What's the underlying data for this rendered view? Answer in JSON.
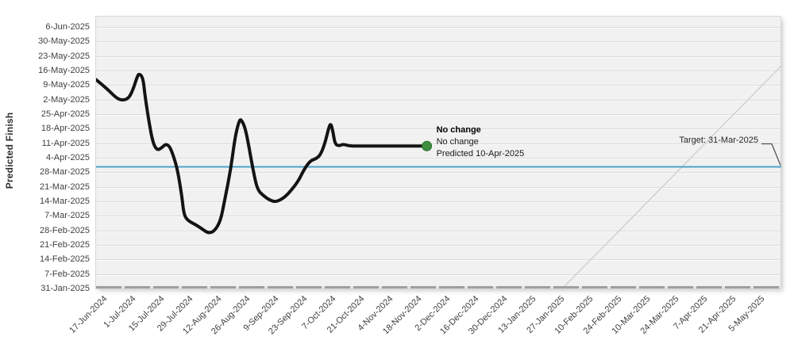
{
  "chart_data": {
    "type": "line",
    "title": "",
    "ylabel": "Predicted Finish",
    "grid": true,
    "x_axis": {
      "tick_interval_days": 14,
      "tick_labels": [
        "17-Jun-2024",
        "1-Jul-2024",
        "15-Jul-2024",
        "29-Jul-2024",
        "12-Aug-2024",
        "26-Aug-2024",
        "9-Sep-2024",
        "23-Sep-2024",
        "7-Oct-2024",
        "21-Oct-2024",
        "4-Nov-2024",
        "18-Nov-2024",
        "2-Dec-2024",
        "16-Dec-2024",
        "30-Dec-2024",
        "13-Jan-2025",
        "27-Jan-2025",
        "10-Feb-2025",
        "24-Feb-2025",
        "10-Mar-2025",
        "24-Mar-2025",
        "7-Apr-2025",
        "21-Apr-2025",
        "5-May-2025"
      ]
    },
    "y_axis": {
      "tick_interval_days": 7,
      "tick_labels": [
        "6-Jun-2025",
        "30-May-2025",
        "23-May-2025",
        "16-May-2025",
        "9-May-2025",
        "2-May-2025",
        "25-Apr-2025",
        "18-Apr-2025",
        "11-Apr-2025",
        "4-Apr-2025",
        "28-Mar-2025",
        "21-Mar-2025",
        "14-Mar-2025",
        "7-Mar-2025",
        "28-Feb-2025",
        "21-Feb-2025",
        "14-Feb-2025",
        "7-Feb-2025",
        "31-Jan-2025"
      ]
    },
    "series": [
      {
        "name": "predicted-finish",
        "color": "#141414",
        "points": [
          [
            "2024-06-17",
            "2025-05-12"
          ],
          [
            "2024-06-22",
            "2025-05-08"
          ],
          [
            "2024-06-27",
            "2025-05-03"
          ],
          [
            "2024-06-30",
            "2025-05-02"
          ],
          [
            "2024-07-03",
            "2025-05-03"
          ],
          [
            "2024-07-05",
            "2025-05-07"
          ],
          [
            "2024-07-07",
            "2025-05-13"
          ],
          [
            "2024-07-08",
            "2025-05-15"
          ],
          [
            "2024-07-10",
            "2025-05-13"
          ],
          [
            "2024-07-11",
            "2025-05-04"
          ],
          [
            "2024-07-13",
            "2025-04-21"
          ],
          [
            "2024-07-15",
            "2025-04-11"
          ],
          [
            "2024-07-17",
            "2025-04-08"
          ],
          [
            "2024-07-19",
            "2025-04-09"
          ],
          [
            "2024-07-21",
            "2025-04-11"
          ],
          [
            "2024-07-23",
            "2025-04-10"
          ],
          [
            "2024-07-25",
            "2025-04-05"
          ],
          [
            "2024-07-27",
            "2025-03-29"
          ],
          [
            "2024-07-29",
            "2025-03-17"
          ],
          [
            "2024-07-30",
            "2025-03-08"
          ],
          [
            "2024-08-01",
            "2025-03-05"
          ],
          [
            "2024-08-05",
            "2025-03-03"
          ],
          [
            "2024-08-08",
            "2025-03-01"
          ],
          [
            "2024-08-11",
            "2025-02-27"
          ],
          [
            "2024-08-14",
            "2025-02-28"
          ],
          [
            "2024-08-17",
            "2025-03-05"
          ],
          [
            "2024-08-19",
            "2025-03-15"
          ],
          [
            "2024-08-22",
            "2025-03-30"
          ],
          [
            "2024-08-24",
            "2025-04-14"
          ],
          [
            "2024-08-26",
            "2025-04-22"
          ],
          [
            "2024-08-27",
            "2025-04-23"
          ],
          [
            "2024-08-29",
            "2025-04-19"
          ],
          [
            "2024-08-31",
            "2025-04-09"
          ],
          [
            "2024-09-02",
            "2025-03-29"
          ],
          [
            "2024-09-04",
            "2025-03-20"
          ],
          [
            "2024-09-07",
            "2025-03-17"
          ],
          [
            "2024-09-10",
            "2025-03-15"
          ],
          [
            "2024-09-13",
            "2025-03-14"
          ],
          [
            "2024-09-17",
            "2025-03-16"
          ],
          [
            "2024-09-20",
            "2025-03-19"
          ],
          [
            "2024-09-24",
            "2025-03-24"
          ],
          [
            "2024-09-27",
            "2025-03-30"
          ],
          [
            "2024-09-30",
            "2025-04-03"
          ],
          [
            "2024-10-03",
            "2025-04-04"
          ],
          [
            "2024-10-05",
            "2025-04-06"
          ],
          [
            "2024-10-07",
            "2025-04-11"
          ],
          [
            "2024-10-09",
            "2025-04-19"
          ],
          [
            "2024-10-10",
            "2025-04-21"
          ],
          [
            "2024-10-11",
            "2025-04-17"
          ],
          [
            "2024-10-12",
            "2025-04-11"
          ],
          [
            "2024-10-14",
            "2025-04-10"
          ],
          [
            "2024-10-16",
            "2025-04-11"
          ],
          [
            "2024-10-19",
            "2025-04-10"
          ],
          [
            "2024-10-25",
            "2025-04-10"
          ],
          [
            "2024-11-02",
            "2025-04-10"
          ],
          [
            "2024-11-10",
            "2025-04-10"
          ],
          [
            "2024-11-17",
            "2025-04-10"
          ],
          [
            "2024-11-26",
            "2025-04-10"
          ]
        ]
      }
    ],
    "target_line": {
      "value": "2025-03-31",
      "label": "Target: 31-Mar-2025",
      "color": "#4da3c8"
    },
    "today_line": {
      "type": "identity",
      "color": "#cfcfcf"
    },
    "marker": {
      "color": "#3e8e3f",
      "stroke": "#2e7031"
    },
    "annotation": {
      "line1": "No change",
      "line2": "No change",
      "line3": "Predicted 10-Apr-2025"
    }
  },
  "colors": {
    "plot_bg": "#f1f1f1",
    "gridline": "#dcdcdc",
    "axis_text": "#3f3f3f",
    "series": "#141414",
    "target": "#4da3c8",
    "today": "#cfcfcf",
    "marker": "#3e8e3f"
  }
}
